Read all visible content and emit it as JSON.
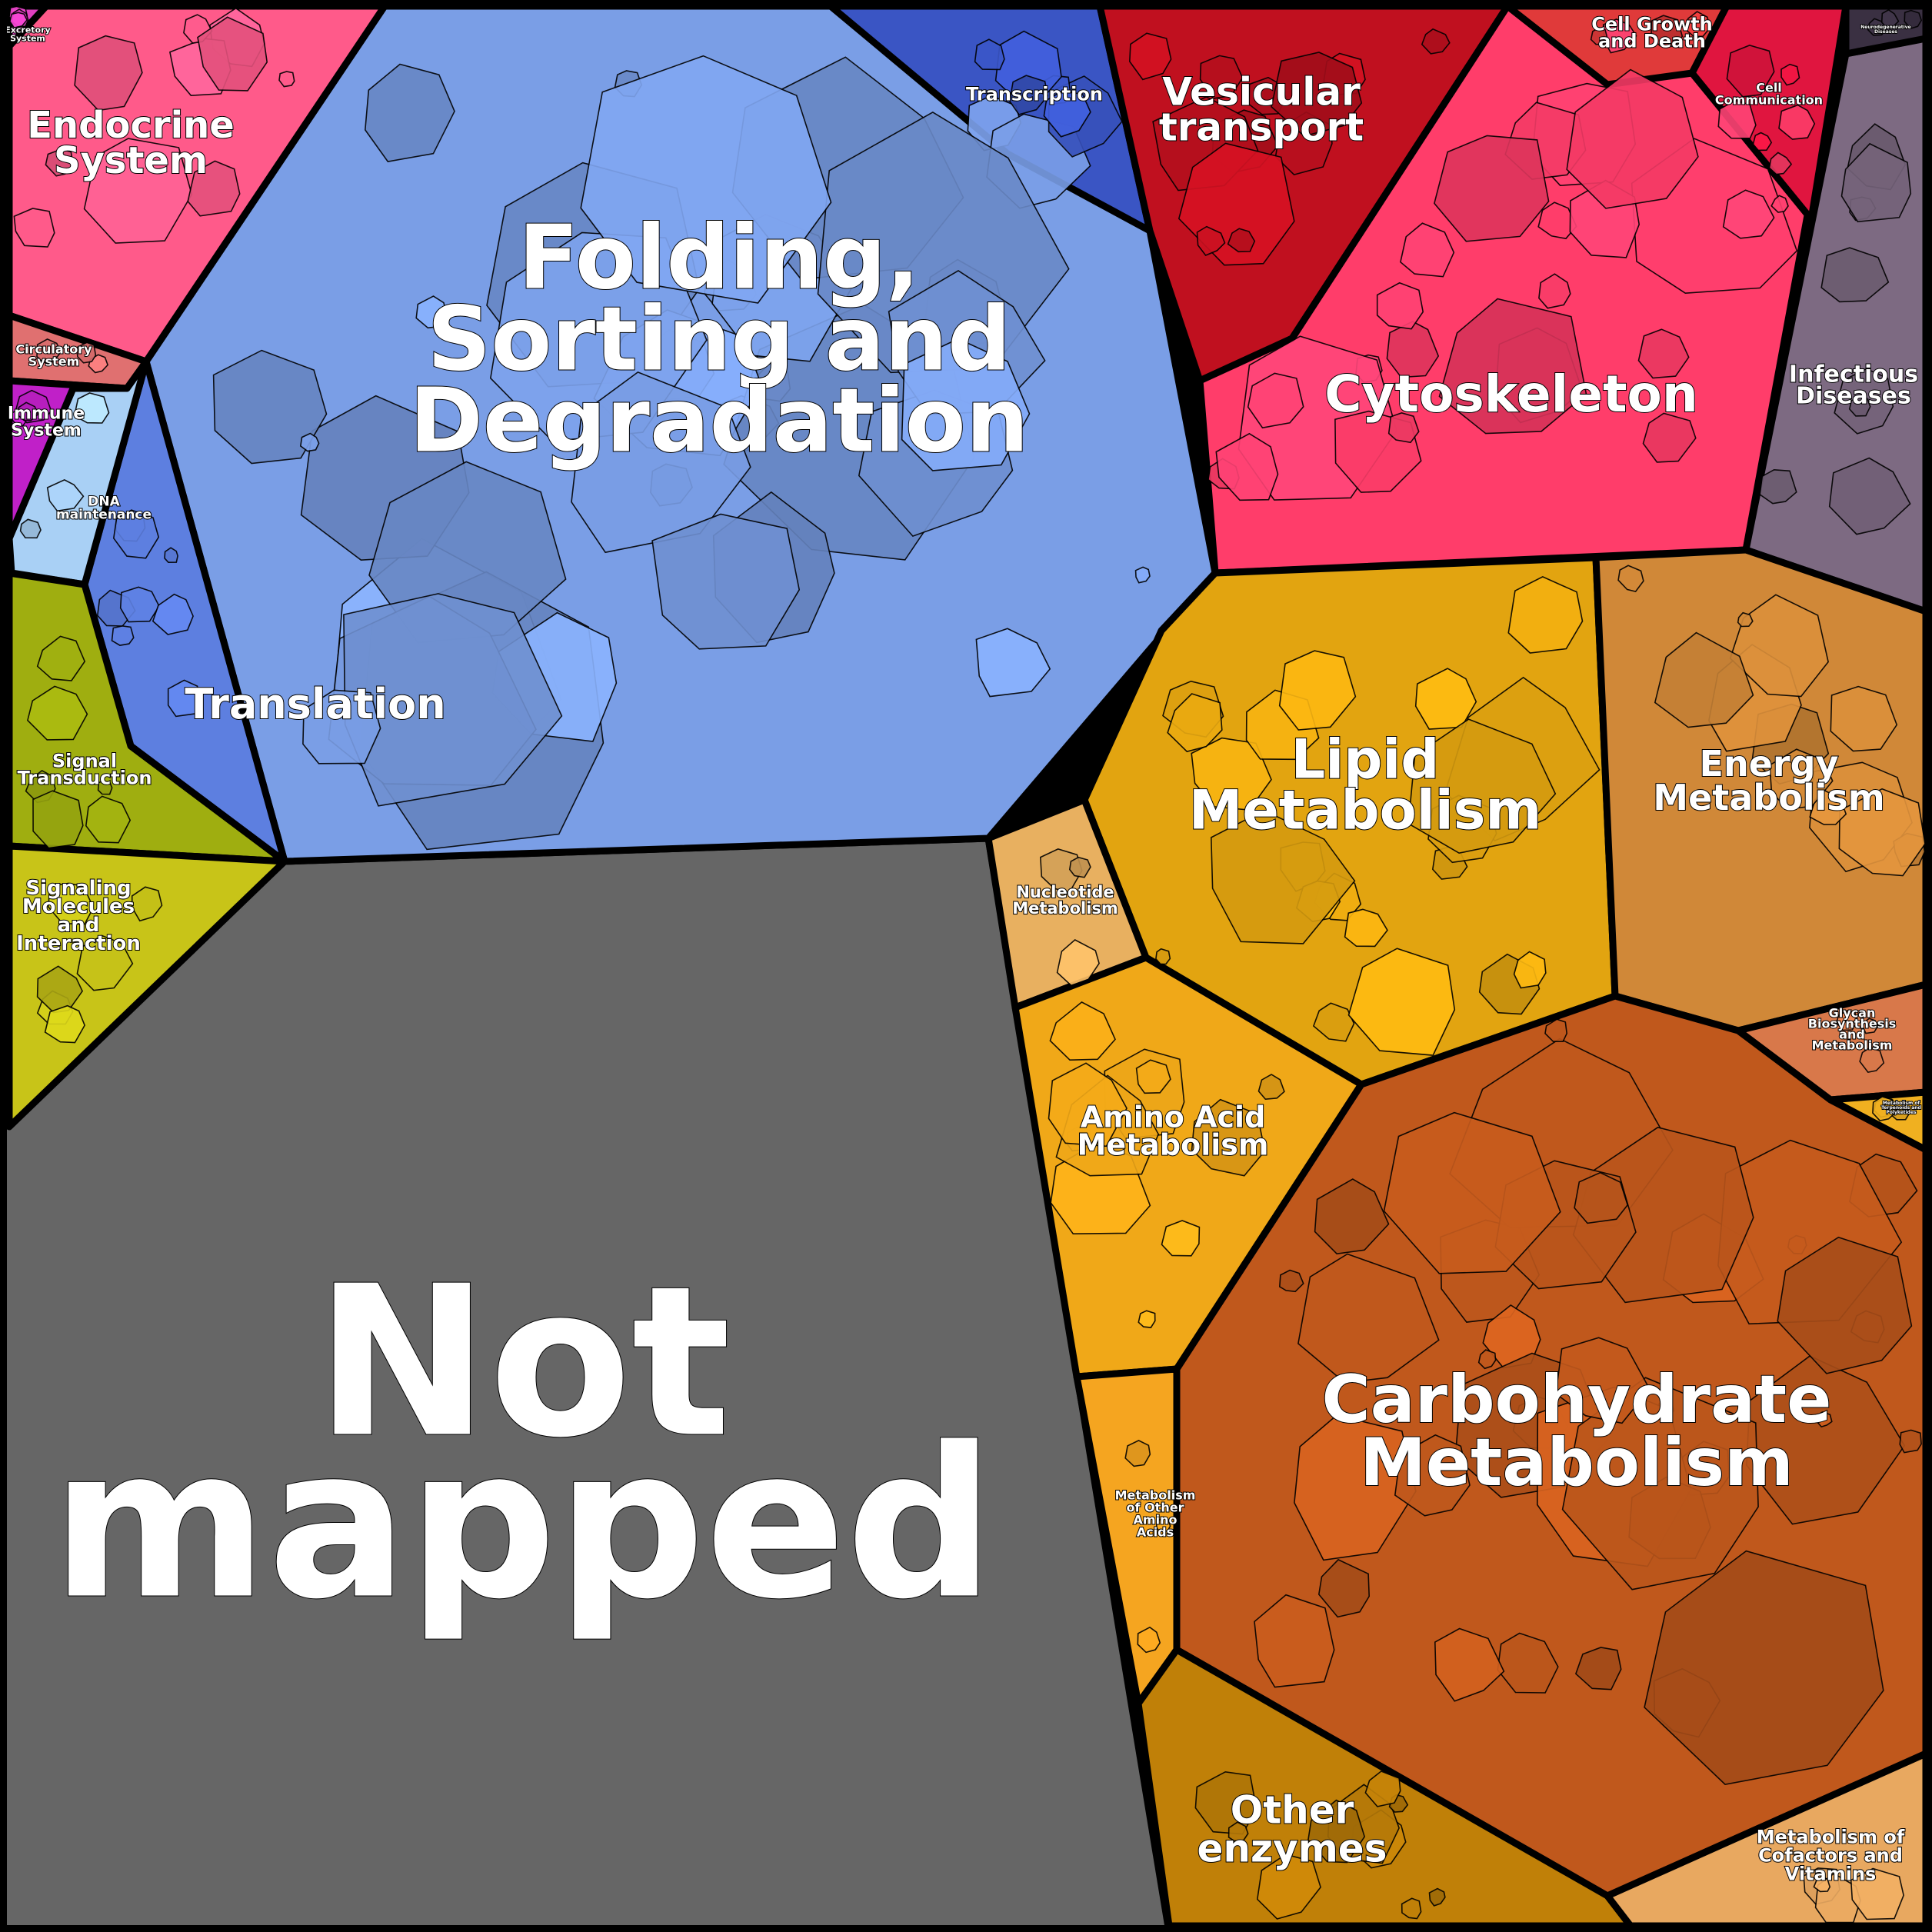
{
  "regions": [
    {
      "id": "not-mapped",
      "label_lines": [
        "Not",
        "mapped"
      ],
      "color": "#666666"
    },
    {
      "id": "folding",
      "label_lines": [
        "Folding,",
        "Sorting and",
        "Degradation"
      ],
      "color": "#7a9ee6"
    },
    {
      "id": "translation",
      "label_lines": [
        "Translation"
      ],
      "color": "#5d7fe0"
    },
    {
      "id": "transcription",
      "label_lines": [
        "Transcription"
      ],
      "color": "#3a55c4"
    },
    {
      "id": "replication",
      "label_lines": [
        "DNA",
        "maintenance"
      ],
      "color": "#a9d0f5"
    },
    {
      "id": "endocrine",
      "label_lines": [
        "Endocrine",
        "System"
      ],
      "color": "#ff5a8a"
    },
    {
      "id": "excretory",
      "label_lines": [
        "Excretory",
        "System"
      ],
      "color": "#e040c0"
    },
    {
      "id": "circulatory",
      "label_lines": [
        "Circulatory",
        "System"
      ],
      "color": "#e07070"
    },
    {
      "id": "immune",
      "label_lines": [
        "Immune",
        "System"
      ],
      "color": "#c020c8"
    },
    {
      "id": "signal-transduction",
      "label_lines": [
        "Signal",
        "Transduction"
      ],
      "color": "#9fae10"
    },
    {
      "id": "signaling-molecules",
      "label_lines": [
        "Signaling",
        "Molecules",
        "and",
        "Interaction"
      ],
      "color": "#c8c418"
    },
    {
      "id": "vesicular",
      "label_lines": [
        "Vesicular",
        "transport"
      ],
      "color": "#c0101f"
    },
    {
      "id": "cytoskeleton",
      "label_lines": [
        "Cytoskeleton"
      ],
      "color": "#ff3d6a"
    },
    {
      "id": "cell-growth",
      "label_lines": [
        "Cell Growth",
        "and Death"
      ],
      "color": "#e03a3a"
    },
    {
      "id": "cell-communication",
      "label_lines": [
        "Cell",
        "Communication"
      ],
      "color": "#e0153f"
    },
    {
      "id": "infectious",
      "label_lines": [
        "Infectious",
        "Diseases"
      ],
      "color": "#7d6a82"
    },
    {
      "id": "neuro",
      "label_lines": [
        "Neurodegenerative",
        "Diseases"
      ],
      "color": "#3a3042"
    },
    {
      "id": "lipid",
      "label_lines": [
        "Lipid",
        "Metabolism"
      ],
      "color": "#e2a410"
    },
    {
      "id": "energy",
      "label_lines": [
        "Energy",
        "Metabolism"
      ],
      "color": "#d08838"
    },
    {
      "id": "nucleotide",
      "label_lines": [
        "Nucleotide",
        "Metabolism"
      ],
      "color": "#e8b060"
    },
    {
      "id": "amino-acid",
      "label_lines": [
        "Amino Acid",
        "Metabolism"
      ],
      "color": "#f0a818"
    },
    {
      "id": "glycan",
      "label_lines": [
        "Glycan",
        "Biosynthesis",
        "and",
        "Metabolism"
      ],
      "color": "#d8784a"
    },
    {
      "id": "terpenoids",
      "label_lines": [
        "Metabolism of",
        "Terpenoids and",
        "Polyketides"
      ],
      "color": "#f0b020"
    },
    {
      "id": "carbohydrate",
      "label_lines": [
        "Carbohydrate",
        "Metabolism"
      ],
      "color": "#c0581c"
    },
    {
      "id": "other-amino",
      "label_lines": [
        "Metabolism",
        "of Other",
        "Amino",
        "Acids"
      ],
      "color": "#f5a520"
    },
    {
      "id": "other-enzymes",
      "label_lines": [
        "Other",
        "enzymes"
      ],
      "color": "#c08008"
    },
    {
      "id": "cofactors",
      "label_lines": [
        "Metabolism of",
        "Cofactors and",
        "Vitamins"
      ],
      "color": "#e8a860"
    }
  ]
}
